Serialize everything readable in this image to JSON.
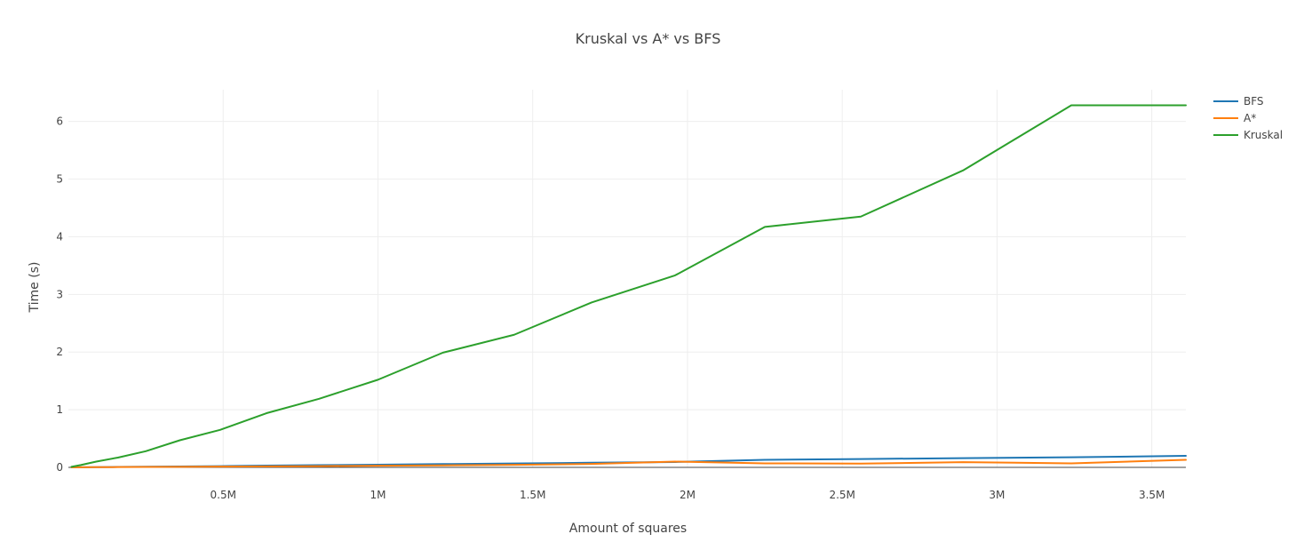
{
  "chart_data": {
    "type": "line",
    "title": "Kruskal vs A*  vs BFS",
    "xlabel": "Amount of squares",
    "ylabel": "Time (s)",
    "xlim": [
      0,
      3610000
    ],
    "ylim": [
      0,
      6.55
    ],
    "x_ticks": [
      {
        "value": 500000,
        "label": "0.5M"
      },
      {
        "value": 1000000,
        "label": "1M"
      },
      {
        "value": 1500000,
        "label": "1.5M"
      },
      {
        "value": 2000000,
        "label": "2M"
      },
      {
        "value": 2500000,
        "label": "2.5M"
      },
      {
        "value": 3000000,
        "label": "3M"
      },
      {
        "value": 3500000,
        "label": "3.5M"
      }
    ],
    "y_ticks": [
      {
        "value": 0,
        "label": "0"
      },
      {
        "value": 1,
        "label": "1"
      },
      {
        "value": 2,
        "label": "2"
      },
      {
        "value": 3,
        "label": "3"
      },
      {
        "value": 4,
        "label": "4"
      },
      {
        "value": 5,
        "label": "5"
      },
      {
        "value": 6,
        "label": "6"
      }
    ],
    "grid": true,
    "legend_position": "top-right",
    "x": [
      10000,
      40000,
      90000,
      160000,
      250000,
      360000,
      490000,
      640000,
      810000,
      1000000,
      1210000,
      1440000,
      1690000,
      1960000,
      2250000,
      2560000,
      2890000,
      3240000,
      3610000
    ],
    "series": [
      {
        "name": "BFS",
        "color": "#1f77b4",
        "values": [
          0.001,
          0.002,
          0.004,
          0.007,
          0.011,
          0.016,
          0.022,
          0.03,
          0.038,
          0.047,
          0.057,
          0.068,
          0.08,
          0.093,
          0.13,
          0.145,
          0.16,
          0.175,
          0.2
        ]
      },
      {
        "name": "A*",
        "color": "#ff7f0e",
        "values": [
          0.001,
          0.002,
          0.003,
          0.005,
          0.007,
          0.01,
          0.013,
          0.017,
          0.022,
          0.028,
          0.035,
          0.044,
          0.06,
          0.1,
          0.07,
          0.065,
          0.09,
          0.07,
          0.13
        ]
      },
      {
        "name": "Kruskal",
        "color": "#2ca02c",
        "values": [
          0.01,
          0.04,
          0.1,
          0.17,
          0.28,
          0.47,
          0.65,
          0.94,
          1.19,
          1.52,
          1.99,
          2.3,
          2.86,
          3.33,
          4.17,
          4.35,
          5.15,
          6.28,
          6.28
        ]
      }
    ]
  }
}
